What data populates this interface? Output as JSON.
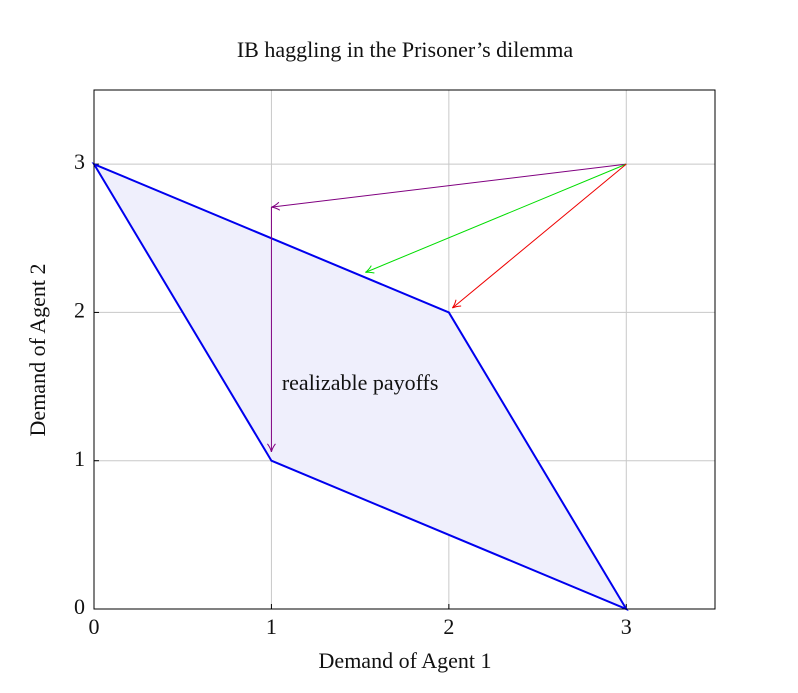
{
  "chart_data": {
    "type": "polygon",
    "title": "IB haggling in the Prisoner’s dilemma",
    "xlabel": "Demand of Agent 1",
    "ylabel": "Demand of Agent 2",
    "xlim": [
      0,
      3.5
    ],
    "ylim": [
      0,
      3.5
    ],
    "xticks": [
      0,
      1,
      2,
      3
    ],
    "yticks": [
      0,
      1,
      2,
      3
    ],
    "grid": true,
    "series": [
      {
        "color": "#0000ee",
        "fill": "#efeffc",
        "x": [
          0,
          2,
          3,
          1,
          0
        ],
        "y": [
          3,
          2,
          0,
          1,
          3
        ]
      }
    ],
    "arrows": [
      {
        "color": "#800080",
        "x": [
          3,
          1
        ],
        "y": [
          3,
          2.71
        ]
      },
      {
        "color": "#800080",
        "x": [
          1,
          1
        ],
        "y": [
          2.71,
          1.06
        ]
      },
      {
        "color": "#00dd00",
        "x": [
          3,
          1.53
        ],
        "y": [
          3,
          2.27
        ]
      },
      {
        "color": "#ee0000",
        "x": [
          3,
          2.02
        ],
        "y": [
          3,
          2.03
        ]
      }
    ],
    "annotations": [
      {
        "text": "realizable payoffs",
        "x": 1.5,
        "y": 1.51
      }
    ]
  }
}
